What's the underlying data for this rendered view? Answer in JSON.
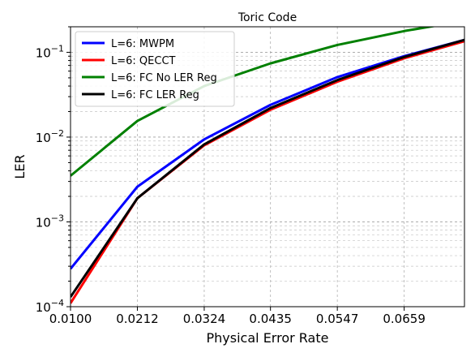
{
  "chart_data": {
    "type": "line",
    "title": "Toric Code",
    "xlabel": "Physical Error Rate",
    "ylabel": "LER",
    "xscale": "linear",
    "yscale": "log",
    "xlim": [
      0.01,
      0.076
    ],
    "ylim": [
      0.0001,
      0.2
    ],
    "grid": true,
    "legend_position": "top-left",
    "xticks": [
      "0.0100",
      "0.0212",
      "0.0324",
      "0.0435",
      "0.0547",
      "0.0659"
    ],
    "yticks": [
      {
        "value": 0.0001,
        "base": "10",
        "exp": "−4"
      },
      {
        "value": 0.001,
        "base": "10",
        "exp": "−3"
      },
      {
        "value": 0.01,
        "base": "10",
        "exp": "−2"
      },
      {
        "value": 0.1,
        "base": "10",
        "exp": "−1"
      }
    ],
    "x": [
      0.01,
      0.0212,
      0.0324,
      0.0435,
      0.0547,
      0.0659,
      0.076
    ],
    "series": [
      {
        "name": "L=6: MWPM",
        "color": "#0000ff",
        "values": [
          0.00028,
          0.0026,
          0.0094,
          0.024,
          0.051,
          0.09,
          0.14
        ]
      },
      {
        "name": "L=6: QECCT",
        "color": "#ff0000",
        "values": [
          0.00011,
          0.0019,
          0.008,
          0.021,
          0.045,
          0.085,
          0.135
        ]
      },
      {
        "name": "L=6: FC No LER Reg",
        "color": "#008000",
        "values": [
          0.0035,
          0.0155,
          0.04,
          0.074,
          0.122,
          0.178,
          0.235
        ]
      },
      {
        "name": "L=6: FC LER Reg",
        "color": "#000000",
        "values": [
          0.00013,
          0.0019,
          0.0082,
          0.022,
          0.047,
          0.088,
          0.14
        ]
      }
    ]
  }
}
